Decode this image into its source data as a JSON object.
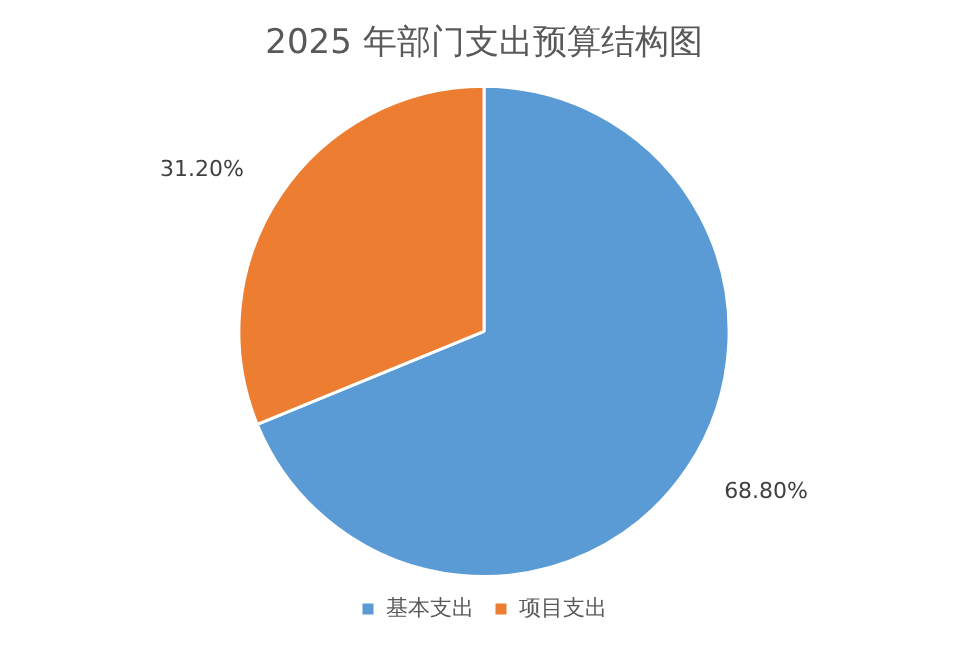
{
  "chart_data": {
    "type": "pie",
    "title": "2025 年部门支出预算结构图",
    "categories": [
      "基本支出",
      "项目支出"
    ],
    "values": [
      68.8,
      31.2
    ],
    "colors": [
      "#5b9bd5",
      "#ed7d31"
    ],
    "value_labels": [
      "68.80%",
      "31.20%"
    ],
    "legend": "bottom"
  }
}
